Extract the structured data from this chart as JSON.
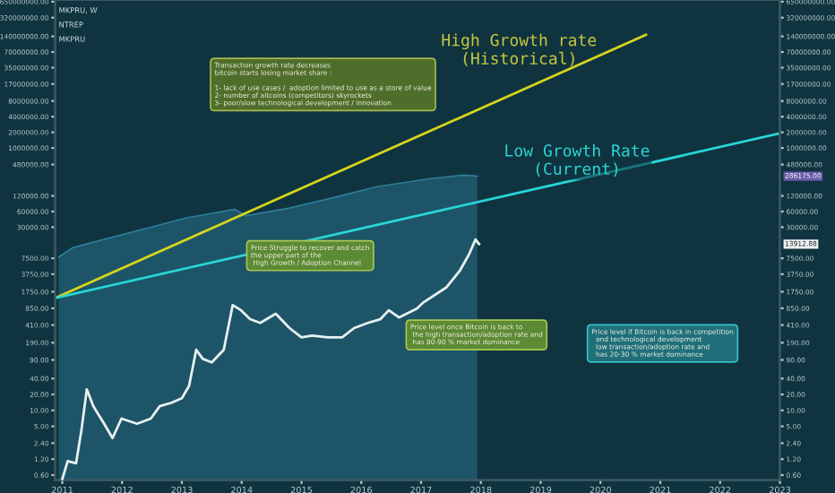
{
  "chart_data": [
    {
      "type": "line",
      "x": [
        2010.94,
        2011.17,
        2011.38,
        2011.9,
        2012.48,
        2013.06,
        2013.88,
        2014.08,
        2014.8,
        2015.59,
        2016.26,
        2017.13,
        2017.71,
        2017.94
      ],
      "series": [
        {
          "type": "area",
          "color": "#2e7d99",
          "values": [
            8000,
            12000,
            14000,
            20000,
            30000,
            45000,
            66000,
            50000,
            70000,
            115000,
            180000,
            255000,
            300000,
            286175
          ]
        },
        {
          "color": "#d6d61c",
          "x": [
            2010.88,
            2020.76
          ],
          "values": [
            1300,
            150000000
          ]
        },
        {
          "color": "#2ad6d6",
          "x": [
            2010.88,
            2022.99
          ],
          "values": [
            1300,
            1900000
          ]
        }
      ],
      "xlim": [
        2010.88,
        2023.0
      ],
      "xticks": [
        2011,
        2012,
        2013,
        2014,
        2015,
        2016,
        2017,
        2018,
        2019,
        2020,
        2021,
        2022,
        2023
      ],
      "ylim": [
        0.41,
        700000000
      ],
      "yticks": [
        {
          "value": 30000,
          "label": "30000.00"
        },
        {
          "value": 60000,
          "label": "60000.00"
        },
        {
          "value": 120000,
          "label": "120000.00"
        },
        {
          "value": 480000,
          "label": "480000.00"
        },
        {
          "value": 1000000,
          "label": "1000000.00"
        },
        {
          "value": 2000000,
          "label": "2000000.00"
        },
        {
          "value": 4000000,
          "label": "4000000.00"
        },
        {
          "value": 8000000,
          "label": "8000000.00"
        },
        {
          "value": 17000000,
          "label": "17000000.00"
        },
        {
          "value": 35000000,
          "label": "35000000.00"
        },
        {
          "value": 70000000,
          "label": "70000000.00"
        },
        {
          "value": 140000000,
          "label": "140000000.00"
        },
        {
          "value": 320000000,
          "label": "320000000.00"
        },
        {
          "value": 650000000,
          "label": "650000000.00"
        }
      ],
      "log": "y",
      "grid": false,
      "legend": false,
      "tick_labels": "y",
      "annotations": [
        "MKPRU, W",
        "NTREP",
        "MKPRU",
        "Transaction growth rate decreases\nbitcoin starts losing market share :\n\n1- lack of use cases /  adoption limited to use as a store of value\n2- number of altcoins (competitors) skyrockets\n3- poor/slow technological development / innovation",
        "High Growth rate\n(Historical)",
        "Low Growth Rate\n(Current)",
        "286175.00"
      ]
    },
    {
      "type": "line",
      "x": [
        2011.0,
        2011.09,
        2011.23,
        2011.32,
        2011.41,
        2011.52,
        2011.7,
        2011.84,
        2011.99,
        2012.25,
        2012.48,
        2012.63,
        2012.83,
        2013.0,
        2013.12,
        2013.24,
        2013.35,
        2013.5,
        2013.7,
        2013.85,
        2013.99,
        2014.14,
        2014.31,
        2014.57,
        2014.8,
        2015.0,
        2015.18,
        2015.44,
        2015.68,
        2015.88,
        2016.11,
        2016.32,
        2016.46,
        2016.63,
        2016.93,
        2017.04,
        2017.42,
        2017.65,
        2017.8,
        2017.91,
        2017.97
      ],
      "series": [
        {
          "color": "#e8f0f0",
          "values": [
            0.5,
            1.1,
            1.0,
            4.2,
            25,
            12,
            5.6,
            3.0,
            7,
            5.6,
            7,
            12,
            14,
            17,
            29,
            140,
            94,
            81,
            140,
            980,
            780,
            530,
            450,
            670,
            360,
            240,
            260,
            240,
            240,
            360,
            450,
            530,
            780,
            570,
            840,
            1100,
            2100,
            4400,
            8800,
            17000,
            13900
          ]
        }
      ],
      "xlim": [
        2010.88,
        2023.0
      ],
      "xticks": [
        2011,
        2012,
        2013,
        2014,
        2015,
        2016,
        2017,
        2018,
        2019,
        2020,
        2021,
        2022,
        2023
      ],
      "ylim": [
        0.48,
        570000000
      ],
      "yticks": [
        {
          "value": 0.6,
          "label": "0.60"
        },
        {
          "value": 1.2,
          "label": "1.20"
        },
        {
          "value": 2.4,
          "label": "2.40"
        },
        {
          "value": 5,
          "label": "5.00"
        },
        {
          "value": 10,
          "label": "10.00"
        },
        {
          "value": 20,
          "label": "20.00"
        },
        {
          "value": 40,
          "label": "40.00"
        },
        {
          "value": 90,
          "label": "90.00"
        },
        {
          "value": 190,
          "label": "190.00"
        },
        {
          "value": 410,
          "label": "410.00"
        },
        {
          "value": 850,
          "label": "850.00"
        },
        {
          "value": 1750,
          "label": "1750.00"
        },
        {
          "value": 3750,
          "label": "3750.00"
        },
        {
          "value": 7500,
          "label": "7500.00"
        }
      ],
      "log": "y",
      "grid": false,
      "legend": false,
      "annotations": [
        "Price Struggle to recover and catch\nthe upper part of the\n High Growth / Adoption Channel",
        "Price level once Bitcoin is back to\n the high transaction/adoption rate and\n has 80-90 % market dominance",
        "Price level if Bitcoin is back in competition\n  and technological development\n  low transaction/adoption rate and\n  has 20-30 % market dominance",
        "13912.88"
      ]
    }
  ]
}
